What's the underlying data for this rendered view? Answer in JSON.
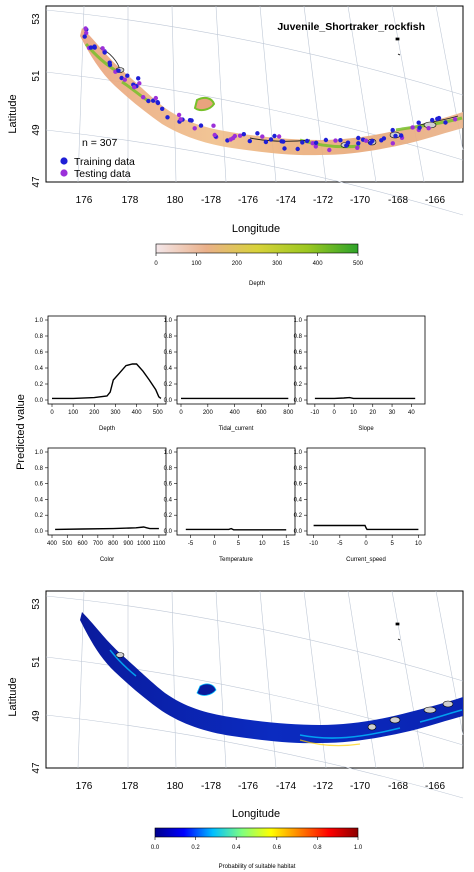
{
  "map_top": {
    "title": "Juvenile_Shortraker_rockfish",
    "xlabel": "Longitude",
    "ylabel": "Latitude",
    "x_ticks": [
      "176",
      "178",
      "180",
      "-178",
      "-176",
      "-174",
      "-172",
      "-170",
      "-168",
      "-166"
    ],
    "y_ticks": [
      "53",
      "51",
      "49",
      "47"
    ],
    "n_label": "n = 307",
    "legend": [
      {
        "label": "Training data",
        "color": "#1f1fd6"
      },
      {
        "label": "Testing data",
        "color": "#9b30d9"
      }
    ],
    "colorbar": {
      "label": "Depth",
      "ticks": [
        "0",
        "100",
        "200",
        "300",
        "400",
        "500"
      ],
      "colors": [
        "#f4e7ea",
        "#eab089",
        "#d8d23a",
        "#9cc821",
        "#2ea32a"
      ]
    }
  },
  "chart_data": [
    {
      "type": "line",
      "panel": "Depth",
      "xlabel": "Depth",
      "xlim": [
        0,
        520
      ],
      "ylim": [
        0,
        1
      ],
      "x_ticks": [
        "0",
        "100",
        "200",
        "300",
        "400",
        "500"
      ],
      "x": [
        0,
        100,
        200,
        260,
        275,
        290,
        320,
        350,
        380,
        400,
        430,
        460,
        490,
        505,
        515
      ],
      "y": [
        0.02,
        0.02,
        0.03,
        0.05,
        0.1,
        0.25,
        0.34,
        0.43,
        0.45,
        0.45,
        0.36,
        0.25,
        0.13,
        0.04,
        0.02
      ]
    },
    {
      "type": "line",
      "panel": "Tidal_current",
      "xlabel": "Tidal_current",
      "xlim": [
        0,
        820
      ],
      "ylim": [
        0,
        1
      ],
      "x_ticks": [
        "0",
        "200",
        "400",
        "600",
        "800"
      ],
      "x": [
        0,
        800
      ],
      "y": [
        0.02,
        0.02
      ]
    },
    {
      "type": "line",
      "panel": "Slope",
      "xlabel": "Slope",
      "xlim": [
        -12,
        45
      ],
      "ylim": [
        0,
        1
      ],
      "x_ticks": [
        "-10",
        "0",
        "10",
        "20",
        "30",
        "40"
      ],
      "x": [
        -10,
        0,
        5,
        8,
        10,
        42
      ],
      "y": [
        0.02,
        0.02,
        0.025,
        0.03,
        0.02,
        0.02
      ]
    },
    {
      "type": "line",
      "panel": "Color",
      "xlabel": "Color",
      "xlim": [
        400,
        1120
      ],
      "ylim": [
        0,
        1
      ],
      "x_ticks": [
        "400",
        "500",
        "600",
        "700",
        "800",
        "900",
        "1000",
        "1100"
      ],
      "x": [
        420,
        600,
        800,
        950,
        1000,
        1020,
        1040,
        1100
      ],
      "y": [
        0.02,
        0.025,
        0.03,
        0.04,
        0.05,
        0.04,
        0.03,
        0.03
      ]
    },
    {
      "type": "line",
      "panel": "Temperature",
      "xlabel": "Temperature",
      "xlim": [
        -7,
        16
      ],
      "ylim": [
        0,
        1
      ],
      "x_ticks": [
        "-5",
        "0",
        "5",
        "10",
        "15"
      ],
      "x": [
        -6,
        3,
        3.5,
        4,
        15
      ],
      "y": [
        0.02,
        0.02,
        0.03,
        0.015,
        0.015
      ]
    },
    {
      "type": "line",
      "panel": "Current_speed",
      "xlabel": "Current_speed",
      "xlim": [
        -10.5,
        10.5
      ],
      "ylim": [
        0,
        1
      ],
      "x_ticks": [
        "-10",
        "-5",
        "0",
        "5",
        "10"
      ],
      "x": [
        -10,
        -0.2,
        0,
        0.2,
        10
      ],
      "y": [
        0.07,
        0.07,
        0.04,
        0.02,
        0.02
      ]
    }
  ],
  "grid": {
    "ylabel": "Predicted value",
    "y_ticks": [
      "0.0",
      "0.2",
      "0.4",
      "0.6",
      "0.8",
      "1.0"
    ]
  },
  "map_bottom": {
    "xlabel": "Longitude",
    "ylabel": "Latitude",
    "x_ticks": [
      "176",
      "178",
      "180",
      "-178",
      "-176",
      "-174",
      "-172",
      "-170",
      "-168",
      "-166"
    ],
    "y_ticks": [
      "53",
      "51",
      "49",
      "47"
    ],
    "colorbar": {
      "label": "Probability of suitable habitat",
      "ticks": [
        "0.0",
        "0.2",
        "0.4",
        "0.6",
        "0.8",
        "1.0"
      ],
      "colors": [
        "#00008b",
        "#0000ff",
        "#00bfff",
        "#7fff7f",
        "#ffff00",
        "#ff7f00",
        "#ff0000",
        "#8b0000"
      ]
    }
  }
}
